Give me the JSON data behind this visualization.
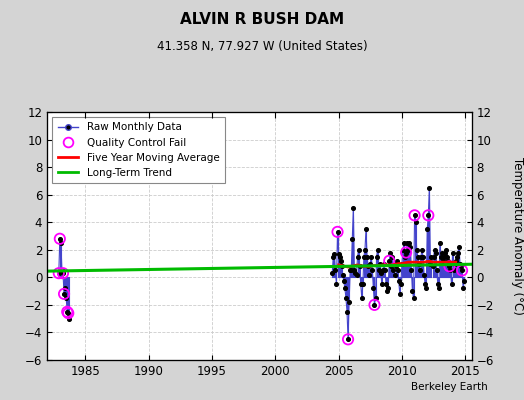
{
  "title": "ALVIN R BUSH DAM",
  "subtitle": "41.358 N, 77.927 W (United States)",
  "ylabel": "Temperature Anomaly (°C)",
  "credit": "Berkeley Earth",
  "ylim": [
    -6,
    12
  ],
  "yticks": [
    -6,
    -4,
    -2,
    0,
    2,
    4,
    6,
    8,
    10,
    12
  ],
  "xlim": [
    1982.0,
    2015.5
  ],
  "xticks": [
    1985,
    1990,
    1995,
    2000,
    2005,
    2010,
    2015
  ],
  "bg_color": "#d4d4d4",
  "plot_bg_color": "#ffffff",
  "raw_color": "#4444cc",
  "raw_marker_color": "#000000",
  "qc_color": "#ff00ff",
  "moving_avg_color": "#ff0000",
  "trend_color": "#00bb00",
  "raw_monthly_group1": [
    [
      1982.917,
      0.3
    ],
    [
      1983.0,
      2.8
    ],
    [
      1983.083,
      2.5
    ],
    [
      1983.167,
      0.5
    ],
    [
      1983.25,
      0.3
    ],
    [
      1983.333,
      -1.2
    ],
    [
      1983.417,
      -0.8
    ],
    [
      1983.5,
      -1.5
    ],
    [
      1983.583,
      -2.5
    ],
    [
      1983.667,
      -2.6
    ],
    [
      1983.75,
      -3.0
    ]
  ],
  "raw_monthly_group2": [
    [
      2004.5,
      0.3
    ],
    [
      2004.583,
      1.5
    ],
    [
      2004.667,
      1.7
    ],
    [
      2004.75,
      0.5
    ],
    [
      2004.833,
      -0.5
    ],
    [
      2004.917,
      3.3
    ],
    [
      2005.0,
      1.7
    ],
    [
      2005.083,
      1.5
    ],
    [
      2005.167,
      1.2
    ],
    [
      2005.25,
      0.8
    ],
    [
      2005.333,
      0.2
    ],
    [
      2005.417,
      -0.3
    ],
    [
      2005.5,
      -0.8
    ],
    [
      2005.583,
      -1.5
    ],
    [
      2005.667,
      -2.5
    ],
    [
      2005.75,
      -4.5
    ],
    [
      2005.833,
      -1.8
    ],
    [
      2005.917,
      0.5
    ],
    [
      2006.0,
      0.5
    ],
    [
      2006.083,
      2.8
    ],
    [
      2006.167,
      5.0
    ],
    [
      2006.25,
      0.5
    ],
    [
      2006.333,
      0.3
    ],
    [
      2006.417,
      0.2
    ],
    [
      2006.5,
      1.5
    ],
    [
      2006.583,
      2.0
    ],
    [
      2006.667,
      0.8
    ],
    [
      2006.75,
      -0.5
    ],
    [
      2006.833,
      -1.5
    ],
    [
      2006.917,
      -0.5
    ],
    [
      2007.0,
      1.5
    ],
    [
      2007.083,
      2.0
    ],
    [
      2007.167,
      3.5
    ],
    [
      2007.25,
      1.5
    ],
    [
      2007.333,
      0.8
    ],
    [
      2007.417,
      0.2
    ],
    [
      2007.5,
      1.0
    ],
    [
      2007.583,
      1.5
    ],
    [
      2007.667,
      0.5
    ],
    [
      2007.75,
      -0.8
    ],
    [
      2007.833,
      -2.0
    ],
    [
      2007.917,
      -1.5
    ],
    [
      2008.0,
      1.5
    ],
    [
      2008.083,
      2.0
    ],
    [
      2008.167,
      0.5
    ],
    [
      2008.25,
      1.0
    ],
    [
      2008.333,
      0.3
    ],
    [
      2008.417,
      -0.5
    ],
    [
      2008.5,
      0.5
    ],
    [
      2008.583,
      1.0
    ],
    [
      2008.667,
      0.5
    ],
    [
      2008.75,
      -0.5
    ],
    [
      2008.833,
      -1.0
    ],
    [
      2008.917,
      -0.8
    ],
    [
      2009.0,
      1.2
    ],
    [
      2009.083,
      1.8
    ],
    [
      2009.167,
      0.8
    ],
    [
      2009.25,
      1.5
    ],
    [
      2009.333,
      0.5
    ],
    [
      2009.417,
      0.2
    ],
    [
      2009.5,
      0.8
    ],
    [
      2009.583,
      1.2
    ],
    [
      2009.667,
      0.5
    ],
    [
      2009.75,
      -0.3
    ],
    [
      2009.833,
      -1.2
    ],
    [
      2009.917,
      -0.5
    ],
    [
      2010.0,
      1.0
    ],
    [
      2010.083,
      2.0
    ],
    [
      2010.167,
      2.5
    ],
    [
      2010.25,
      1.5
    ],
    [
      2010.333,
      1.8
    ],
    [
      2010.417,
      2.5
    ],
    [
      2010.5,
      2.0
    ],
    [
      2010.583,
      2.5
    ],
    [
      2010.667,
      2.2
    ],
    [
      2010.75,
      0.5
    ],
    [
      2010.833,
      -1.0
    ],
    [
      2010.917,
      -1.5
    ],
    [
      2011.0,
      4.5
    ],
    [
      2011.083,
      4.0
    ],
    [
      2011.167,
      2.0
    ],
    [
      2011.25,
      1.5
    ],
    [
      2011.333,
      1.0
    ],
    [
      2011.417,
      0.5
    ],
    [
      2011.5,
      1.5
    ],
    [
      2011.583,
      2.0
    ],
    [
      2011.667,
      1.5
    ],
    [
      2011.75,
      0.2
    ],
    [
      2011.833,
      -0.5
    ],
    [
      2011.917,
      -0.8
    ],
    [
      2012.0,
      3.5
    ],
    [
      2012.083,
      4.5
    ],
    [
      2012.167,
      6.5
    ],
    [
      2012.25,
      1.0
    ],
    [
      2012.333,
      1.5
    ],
    [
      2012.417,
      0.8
    ],
    [
      2012.5,
      1.5
    ],
    [
      2012.583,
      2.0
    ],
    [
      2012.667,
      1.8
    ],
    [
      2012.75,
      0.5
    ],
    [
      2012.833,
      -0.5
    ],
    [
      2012.917,
      -0.8
    ],
    [
      2013.0,
      2.5
    ],
    [
      2013.083,
      1.5
    ],
    [
      2013.167,
      1.8
    ],
    [
      2013.25,
      1.2
    ],
    [
      2013.333,
      1.5
    ],
    [
      2013.417,
      1.8
    ],
    [
      2013.5,
      2.0
    ],
    [
      2013.583,
      1.5
    ],
    [
      2013.667,
      1.2
    ],
    [
      2013.75,
      0.8
    ],
    [
      2013.833,
      0.5
    ],
    [
      2013.917,
      -0.5
    ],
    [
      2014.0,
      1.8
    ],
    [
      2014.083,
      0.5
    ],
    [
      2014.167,
      1.0
    ],
    [
      2014.25,
      1.2
    ],
    [
      2014.333,
      1.5
    ],
    [
      2014.417,
      1.8
    ],
    [
      2014.5,
      2.2
    ],
    [
      2014.583,
      1.0
    ],
    [
      2014.667,
      0.8
    ],
    [
      2014.75,
      0.5
    ],
    [
      2014.833,
      -0.8
    ],
    [
      2014.917,
      -0.3
    ]
  ],
  "qc_fail_points": [
    [
      1982.917,
      0.3
    ],
    [
      1983.0,
      2.8
    ],
    [
      1983.25,
      0.3
    ],
    [
      1983.333,
      -1.2
    ],
    [
      1983.583,
      -2.5
    ],
    [
      1983.667,
      -2.6
    ],
    [
      2004.917,
      3.3
    ],
    [
      2005.75,
      -4.5
    ],
    [
      2007.833,
      -2.0
    ],
    [
      2009.0,
      1.2
    ],
    [
      2010.333,
      1.8
    ],
    [
      2011.0,
      4.5
    ],
    [
      2012.083,
      4.5
    ],
    [
      2013.75,
      0.8
    ],
    [
      2014.75,
      0.5
    ]
  ],
  "moving_avg": [
    [
      2005.0,
      0.9
    ],
    [
      2005.25,
      0.85
    ],
    [
      2005.5,
      0.8
    ],
    [
      2005.75,
      0.75
    ],
    [
      2006.0,
      0.8
    ],
    [
      2006.25,
      0.85
    ],
    [
      2006.5,
      0.9
    ],
    [
      2006.75,
      0.85
    ],
    [
      2007.0,
      0.8
    ],
    [
      2007.25,
      0.8
    ],
    [
      2007.5,
      0.8
    ],
    [
      2007.75,
      0.85
    ],
    [
      2008.0,
      0.85
    ],
    [
      2008.25,
      0.85
    ],
    [
      2008.5,
      0.9
    ],
    [
      2008.75,
      0.9
    ],
    [
      2009.0,
      0.9
    ],
    [
      2009.25,
      0.9
    ],
    [
      2009.5,
      0.95
    ],
    [
      2009.75,
      1.0
    ],
    [
      2010.0,
      1.0
    ],
    [
      2010.25,
      1.05
    ],
    [
      2010.5,
      1.1
    ],
    [
      2010.75,
      1.1
    ],
    [
      2011.0,
      1.1
    ],
    [
      2011.25,
      1.1
    ],
    [
      2011.5,
      1.1
    ],
    [
      2011.75,
      1.1
    ],
    [
      2012.0,
      1.15
    ],
    [
      2012.25,
      1.15
    ],
    [
      2012.5,
      1.1
    ],
    [
      2012.75,
      1.1
    ],
    [
      2013.0,
      1.1
    ],
    [
      2013.25,
      1.1
    ],
    [
      2013.5,
      1.1
    ],
    [
      2013.75,
      1.1
    ],
    [
      2014.0,
      1.1
    ],
    [
      2014.25,
      1.1
    ]
  ],
  "trend_x": [
    1982.0,
    2015.5
  ],
  "trend_y": [
    0.45,
    0.95
  ]
}
